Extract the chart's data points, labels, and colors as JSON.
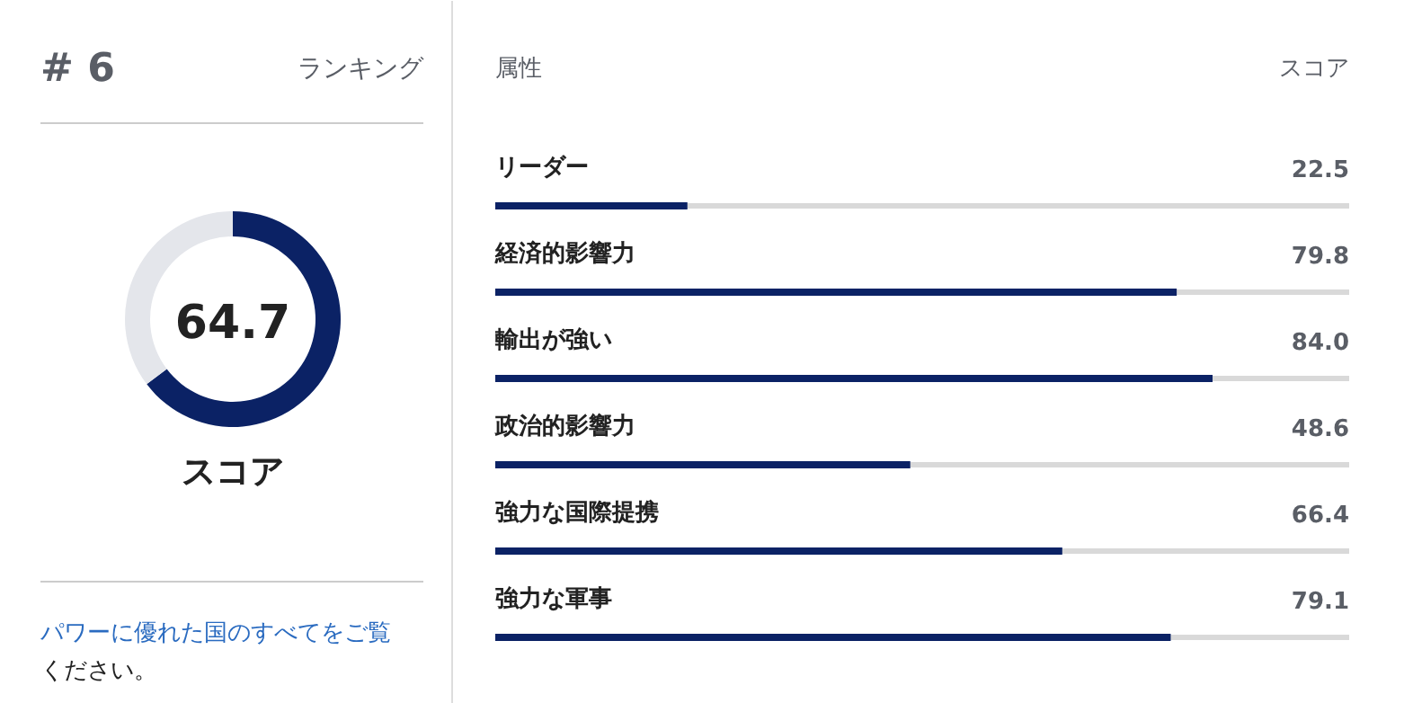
{
  "chart_data": [
    {
      "type": "donut",
      "title": "スコア",
      "categories": [
        null,
        null
      ],
      "values": [
        64.7,
        35.3
      ],
      "value_labels": [
        "64.7",
        null
      ],
      "colors": [
        "#0b2265",
        "#e4e6eb"
      ],
      "annotations": [
        "# 6",
        "ランキング",
        "パワーに優れた国のすべてをご覧ください。"
      ]
    },
    {
      "type": "bar",
      "orientation": "horizontal",
      "ylabel": "属性",
      "xlabel": "スコア",
      "categories": [
        "リーダー",
        "経済的影響力",
        "輸出が強い",
        "政治的影響力",
        "強力な国際提携",
        "強力な軍事"
      ],
      "values": [
        22.5,
        79.8,
        84.0,
        48.6,
        66.4,
        79.1
      ],
      "value_labels": [
        "22.5",
        "79.8",
        "84.0",
        "48.6",
        "66.4",
        "79.1"
      ],
      "color": "#0b2265",
      "xlim": [
        0,
        100
      ],
      "tick_labels": false
    }
  ]
}
